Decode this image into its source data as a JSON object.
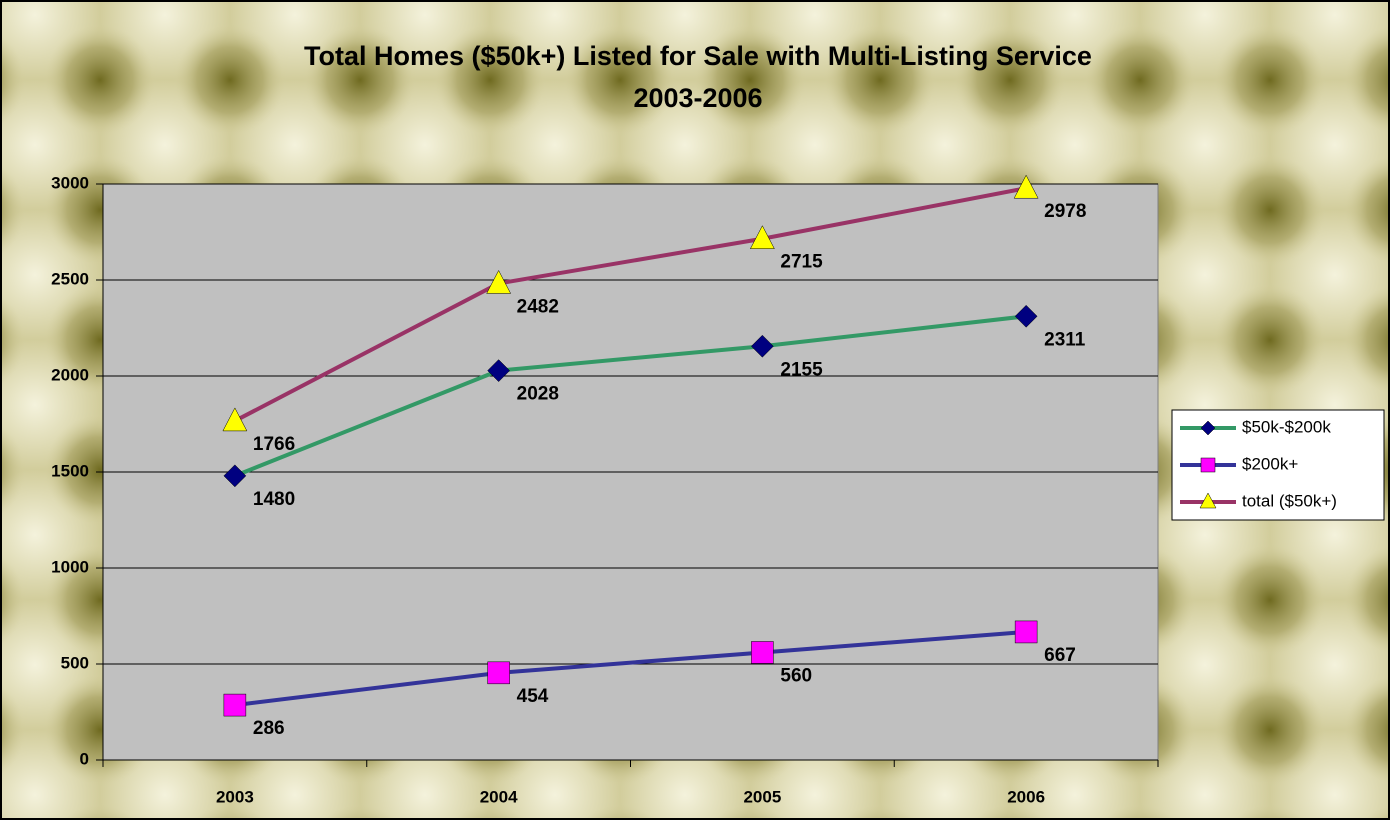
{
  "chart_data": {
    "type": "line",
    "title": "Total Homes ($50k+) Listed for Sale with Multi-Listing Service",
    "subtitle": "2003-2006",
    "categories": [
      "2003",
      "2004",
      "2005",
      "2006"
    ],
    "series": [
      {
        "name": "$50k-$200k",
        "color": "#339966",
        "marker": "diamond",
        "marker_color": "#000080",
        "values": [
          1480,
          2028,
          2155,
          2311
        ]
      },
      {
        "name": "$200k+",
        "color": "#333399",
        "marker": "square",
        "marker_color": "#ff00ff",
        "values": [
          286,
          454,
          560,
          667
        ]
      },
      {
        "name": "total ($50k+)",
        "color": "#993366",
        "marker": "triangle",
        "marker_color": "#ffff00",
        "values": [
          1766,
          2482,
          2715,
          2978
        ]
      }
    ],
    "ylim": [
      0,
      3000
    ],
    "yticks": [
      0,
      500,
      1000,
      1500,
      2000,
      2500,
      3000
    ],
    "grid": true,
    "legend": "right"
  }
}
